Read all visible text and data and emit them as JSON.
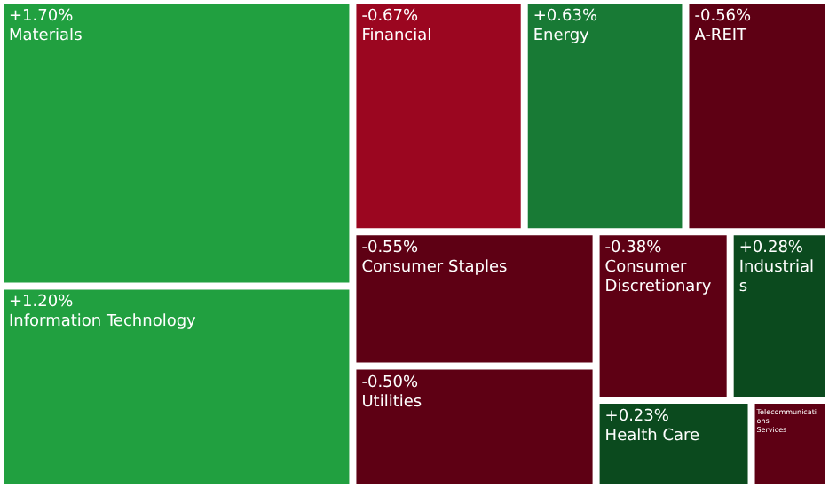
{
  "chart_data": {
    "type": "other",
    "categories": [
      "Materials",
      "Information Technology",
      "Financial",
      "Energy",
      "A-REIT",
      "Consumer Staples",
      "Utilities",
      "Consumer Discretionary",
      "Industrials",
      "Health Care",
      "Telecommunications Services"
    ],
    "values": [
      1.7,
      1.2,
      -0.67,
      0.63,
      -0.56,
      -0.55,
      -0.5,
      -0.38,
      0.28,
      0.23,
      null
    ],
    "value_labels": [
      "+1.70%",
      "+1.20%",
      "-0.67%",
      "+0.63%",
      "-0.56%",
      "-0.55%",
      "-0.50%",
      "-0.38%",
      "+0.28%",
      "+0.23%",
      null
    ],
    "colors": [
      "#21a040",
      "#21a040",
      "#9b0620",
      "#187a35",
      "#5e0014",
      "#5e0014",
      "#5e0014",
      "#5e0014",
      "#0b4a1e",
      "#0b4a1e",
      "#5e0014"
    ]
  }
}
